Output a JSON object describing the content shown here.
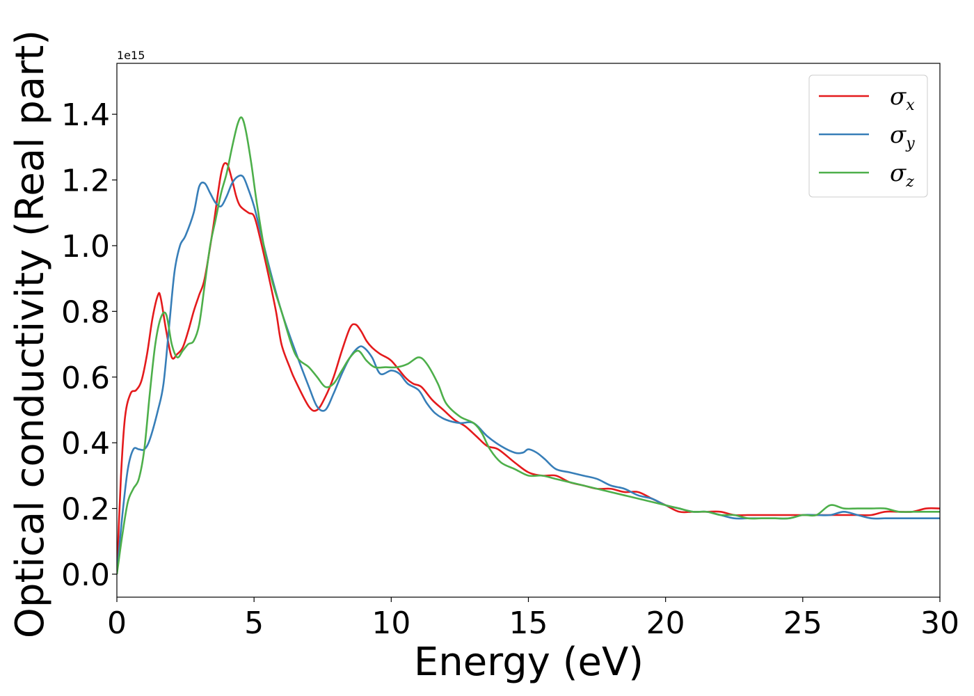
{
  "chart_data": {
    "type": "line",
    "title": "",
    "xlabel": "Energy (eV)",
    "ylabel": "Optical conductivity (Real part)",
    "y_offset_text": "1e15",
    "y_scale_factor": 1000000000000000.0,
    "xlim": [
      0,
      30
    ],
    "ylim": [
      -0.07,
      1.555
    ],
    "xticks": [
      0,
      5,
      10,
      15,
      20,
      25,
      30
    ],
    "xtick_labels": [
      "0",
      "5",
      "10",
      "15",
      "20",
      "25",
      "30"
    ],
    "yticks": [
      0.0,
      0.2,
      0.4,
      0.6,
      0.8,
      1.0,
      1.2,
      1.4
    ],
    "ytick_labels": [
      "0.0",
      "0.2",
      "0.4",
      "0.6",
      "0.8",
      "1.0",
      "1.2",
      "1.4"
    ],
    "grid": false,
    "legend_position": "top-right",
    "series": [
      {
        "name": "σx",
        "symbol": "σ",
        "subscript": "x",
        "color": "#e41a1c",
        "x": [
          0,
          0.15,
          0.3,
          0.5,
          0.7,
          0.9,
          1.1,
          1.3,
          1.5,
          1.6,
          1.8,
          2.0,
          2.2,
          2.4,
          2.6,
          2.8,
          3.0,
          3.2,
          3.5,
          3.8,
          4.0,
          4.2,
          4.35,
          4.5,
          4.8,
          5.0,
          5.2,
          5.5,
          5.8,
          6.0,
          6.3,
          6.5,
          7.0,
          7.3,
          7.6,
          7.9,
          8.2,
          8.5,
          8.7,
          8.9,
          9.1,
          9.3,
          9.6,
          10.0,
          10.5,
          10.8,
          11.1,
          11.5,
          11.9,
          12.3,
          12.7,
          13.1,
          13.5,
          13.9,
          14.5,
          15.0,
          15.5,
          16.0,
          16.5,
          17.0,
          17.5,
          18.0,
          18.5,
          19.0,
          19.5,
          20.0,
          20.5,
          21.0,
          21.5,
          22.0,
          22.5,
          23.0,
          23.5,
          24.0,
          24.5,
          25.0,
          25.5,
          26.0,
          26.5,
          27.0,
          27.5,
          28.0,
          28.5,
          29.0,
          29.5,
          30.0
        ],
        "y": [
          0.0,
          0.3,
          0.48,
          0.55,
          0.56,
          0.59,
          0.67,
          0.78,
          0.85,
          0.84,
          0.74,
          0.66,
          0.67,
          0.69,
          0.74,
          0.8,
          0.85,
          0.9,
          1.05,
          1.22,
          1.25,
          1.2,
          1.15,
          1.12,
          1.1,
          1.09,
          1.03,
          0.92,
          0.8,
          0.7,
          0.63,
          0.59,
          0.51,
          0.5,
          0.54,
          0.6,
          0.68,
          0.75,
          0.76,
          0.74,
          0.71,
          0.69,
          0.67,
          0.65,
          0.6,
          0.58,
          0.57,
          0.53,
          0.5,
          0.47,
          0.45,
          0.42,
          0.39,
          0.38,
          0.34,
          0.31,
          0.3,
          0.3,
          0.28,
          0.27,
          0.26,
          0.26,
          0.25,
          0.25,
          0.23,
          0.21,
          0.19,
          0.19,
          0.19,
          0.19,
          0.18,
          0.18,
          0.18,
          0.18,
          0.18,
          0.18,
          0.18,
          0.18,
          0.18,
          0.18,
          0.18,
          0.19,
          0.19,
          0.19,
          0.2,
          0.2
        ]
      },
      {
        "name": "σy",
        "symbol": "σ",
        "subscript": "y",
        "color": "#377eb8",
        "x": [
          0,
          0.2,
          0.4,
          0.6,
          0.8,
          1.0,
          1.2,
          1.5,
          1.7,
          1.9,
          2.1,
          2.3,
          2.5,
          2.8,
          3.0,
          3.2,
          3.4,
          3.6,
          3.8,
          4.0,
          4.2,
          4.4,
          4.6,
          4.8,
          5.0,
          5.3,
          5.6,
          6.0,
          6.5,
          7.0,
          7.3,
          7.6,
          7.9,
          8.2,
          8.5,
          8.8,
          9.0,
          9.3,
          9.6,
          10.0,
          10.3,
          10.6,
          11.0,
          11.3,
          11.6,
          12.0,
          12.5,
          13.0,
          13.5,
          14.0,
          14.5,
          14.8,
          15.0,
          15.3,
          15.6,
          16.0,
          16.5,
          17.0,
          17.5,
          18.0,
          18.5,
          19.0,
          19.5,
          20.0,
          20.5,
          21.0,
          21.5,
          22.0,
          22.5,
          23.0,
          23.5,
          24.0,
          24.5,
          25.0,
          25.5,
          26.0,
          26.5,
          27.0,
          27.5,
          28.0,
          28.5,
          29.0,
          29.5,
          30.0
        ],
        "y": [
          0.0,
          0.18,
          0.32,
          0.38,
          0.38,
          0.38,
          0.41,
          0.5,
          0.58,
          0.75,
          0.92,
          1.0,
          1.03,
          1.1,
          1.18,
          1.19,
          1.16,
          1.13,
          1.12,
          1.15,
          1.19,
          1.21,
          1.21,
          1.17,
          1.12,
          1.02,
          0.92,
          0.8,
          0.68,
          0.57,
          0.51,
          0.5,
          0.55,
          0.61,
          0.66,
          0.69,
          0.69,
          0.66,
          0.61,
          0.62,
          0.61,
          0.58,
          0.56,
          0.52,
          0.49,
          0.47,
          0.46,
          0.46,
          0.42,
          0.39,
          0.37,
          0.37,
          0.38,
          0.37,
          0.35,
          0.32,
          0.31,
          0.3,
          0.29,
          0.27,
          0.26,
          0.24,
          0.23,
          0.21,
          0.2,
          0.19,
          0.19,
          0.18,
          0.17,
          0.17,
          0.17,
          0.17,
          0.17,
          0.18,
          0.18,
          0.18,
          0.19,
          0.18,
          0.17,
          0.17,
          0.17,
          0.17,
          0.17,
          0.17
        ]
      },
      {
        "name": "σz",
        "symbol": "σ",
        "subscript": "z",
        "color": "#4daf4a",
        "x": [
          0,
          0.2,
          0.4,
          0.6,
          0.8,
          1.0,
          1.2,
          1.4,
          1.6,
          1.8,
          2.0,
          2.2,
          2.4,
          2.6,
          2.8,
          3.0,
          3.2,
          3.4,
          3.6,
          3.8,
          4.0,
          4.2,
          4.4,
          4.55,
          4.7,
          4.9,
          5.1,
          5.4,
          5.7,
          6.0,
          6.5,
          7.0,
          7.3,
          7.6,
          7.9,
          8.2,
          8.5,
          8.8,
          9.1,
          9.4,
          9.8,
          10.2,
          10.6,
          11.0,
          11.3,
          11.7,
          12.0,
          12.5,
          13.0,
          13.3,
          13.6,
          14.0,
          14.5,
          15.0,
          15.5,
          16.0,
          16.5,
          17.0,
          17.5,
          18.0,
          18.5,
          19.0,
          19.5,
          20.0,
          20.5,
          21.0,
          21.5,
          22.0,
          22.5,
          23.0,
          23.5,
          24.0,
          24.5,
          25.0,
          25.5,
          26.0,
          26.5,
          27.0,
          27.5,
          28.0,
          28.5,
          29.0,
          29.5,
          30.0
        ],
        "y": [
          0.0,
          0.12,
          0.22,
          0.26,
          0.29,
          0.38,
          0.55,
          0.7,
          0.78,
          0.79,
          0.7,
          0.66,
          0.68,
          0.7,
          0.71,
          0.76,
          0.88,
          1.0,
          1.08,
          1.16,
          1.22,
          1.3,
          1.37,
          1.39,
          1.35,
          1.25,
          1.13,
          0.98,
          0.88,
          0.8,
          0.67,
          0.63,
          0.6,
          0.57,
          0.58,
          0.62,
          0.66,
          0.68,
          0.65,
          0.63,
          0.63,
          0.63,
          0.64,
          0.66,
          0.64,
          0.58,
          0.52,
          0.48,
          0.46,
          0.43,
          0.38,
          0.34,
          0.32,
          0.3,
          0.3,
          0.29,
          0.28,
          0.27,
          0.26,
          0.25,
          0.24,
          0.23,
          0.22,
          0.21,
          0.2,
          0.19,
          0.19,
          0.18,
          0.18,
          0.17,
          0.17,
          0.17,
          0.17,
          0.18,
          0.18,
          0.21,
          0.2,
          0.2,
          0.2,
          0.2,
          0.19,
          0.19,
          0.19,
          0.19
        ]
      }
    ]
  }
}
